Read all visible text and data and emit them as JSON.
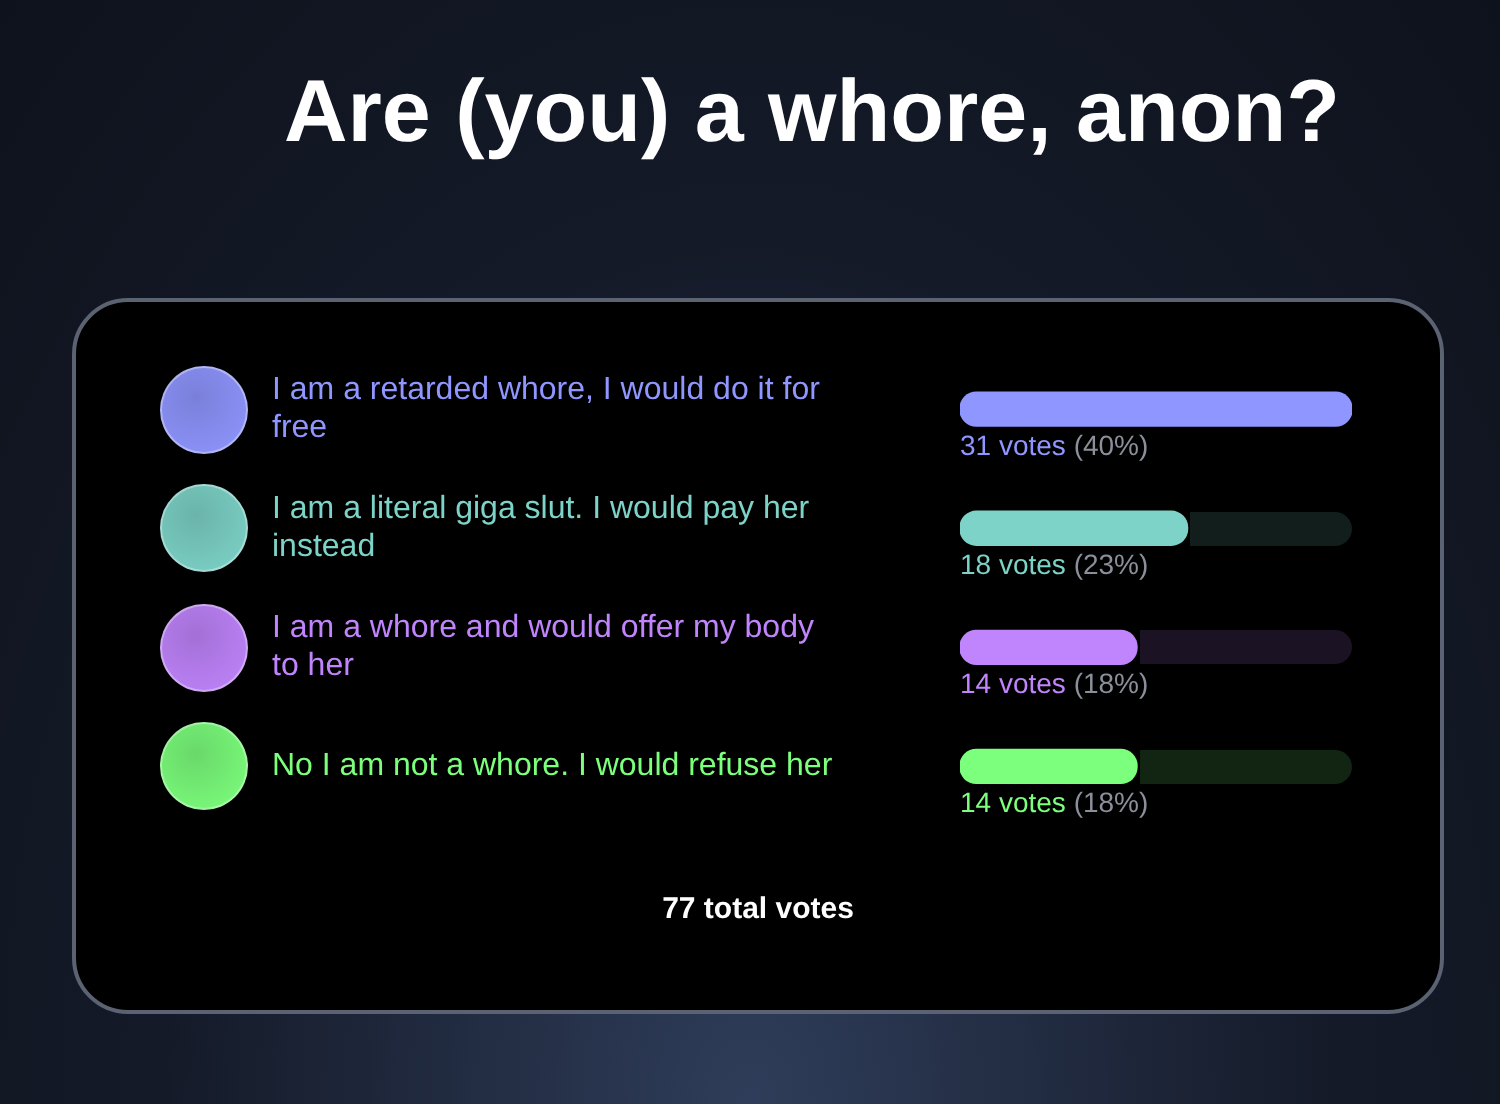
{
  "chart_data": {
    "type": "bar",
    "orientation": "horizontal",
    "title": "Are (you) a whore, anon?",
    "categories": [
      "I am a retarded whore, I would do it for free",
      "I am a literal giga slut. I would pay her instead",
      "I am a whore and would offer my body to her",
      "No I am not a whore. I would refuse her"
    ],
    "values": [
      31,
      18,
      14,
      14
    ],
    "colors": [
      "#8f96ff",
      "#7dd3c8",
      "#c084fc",
      "#7cff7c"
    ],
    "value_labels": [
      "31 votes (40%)",
      "18 votes (23%)",
      "14 votes (18%)",
      "14 votes (18%)"
    ],
    "annotations": [
      "77 total votes"
    ],
    "legend": false
  }
}
